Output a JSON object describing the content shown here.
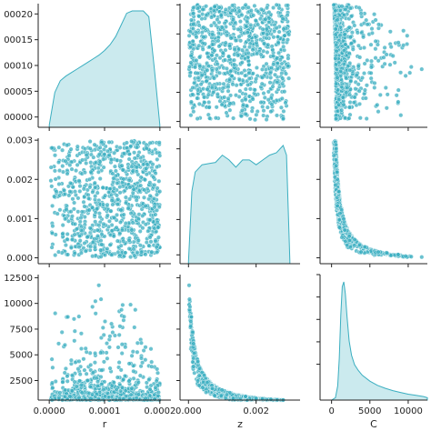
{
  "colors": {
    "marker": "#3aaec0",
    "fill": "#cbeaee",
    "edge": "#3aaec0",
    "axis": "#222222"
  },
  "chart_data": {
    "type": "pairplot",
    "variables": [
      "r",
      "z",
      "C"
    ],
    "ranges": {
      "r": [
        -2e-05,
        0.00022
      ],
      "z": [
        -0.00025,
        0.0033
      ],
      "C": [
        -1500,
        12500
      ]
    },
    "ylims": {
      "r": [
        -1e-05,
        0.000202
      ],
      "z": [
        -0.00015,
        0.00305
      ],
      "C": [
        600,
        12800
      ]
    },
    "yticks": {
      "r": [
        {
          "v": 0.0,
          "label": "00000"
        },
        {
          "v": 5e-05,
          "label": "00005"
        },
        {
          "v": 0.0001,
          "label": "00010"
        },
        {
          "v": 0.00015,
          "label": "00015"
        },
        {
          "v": 0.0002,
          "label": "00020"
        }
      ],
      "z": [
        {
          "v": 0.0,
          "label": "0.000"
        },
        {
          "v": 0.001,
          "label": "0.001"
        },
        {
          "v": 0.002,
          "label": "0.002"
        },
        {
          "v": 0.003,
          "label": "0.003"
        }
      ],
      "C": [
        {
          "v": 2500,
          "label": "2500"
        },
        {
          "v": 5000,
          "label": "5000"
        },
        {
          "v": 7500,
          "label": "7500"
        },
        {
          "v": 10000,
          "label": "10000"
        },
        {
          "v": 12500,
          "label": "12500"
        }
      ]
    },
    "xticks": {
      "r": [
        {
          "v": 0.0,
          "label": "0.0000"
        },
        {
          "v": 0.0001,
          "label": "0.0001"
        },
        {
          "v": 0.0002,
          "label": "0.0002"
        }
      ],
      "z": [
        {
          "v": 0.0,
          "label": "0.000"
        },
        {
          "v": 0.002,
          "label": "0.002"
        }
      ],
      "C": [
        {
          "v": 0,
          "label": "0"
        },
        {
          "v": 5000,
          "label": "5000"
        },
        {
          "v": 10000,
          "label": "10000"
        }
      ]
    },
    "xlabels": [
      "r",
      "z",
      "C"
    ],
    "kde": {
      "r": {
        "x": [
          0.0,
          1e-05,
          2e-05,
          3e-05,
          4e-05,
          5e-05,
          6e-05,
          7e-05,
          8e-05,
          9e-05,
          0.0001,
          0.00011,
          0.00012,
          0.00013,
          0.00014,
          0.00015,
          0.00016,
          0.00017,
          0.00018,
          0.00019,
          0.0002
        ],
        "y": [
          0.02,
          0.3,
          0.4,
          0.44,
          0.47,
          0.5,
          0.53,
          0.56,
          0.59,
          0.62,
          0.66,
          0.71,
          0.78,
          0.88,
          0.98,
          1.0,
          1.0,
          1.0,
          0.95,
          0.5,
          0.02
        ]
      },
      "z": {
        "x": [
          0.0,
          0.0001,
          0.0002,
          0.0004,
          0.0006,
          0.0008,
          0.001,
          0.0012,
          0.0014,
          0.0016,
          0.0018,
          0.002,
          0.0022,
          0.0024,
          0.0026,
          0.0028,
          0.0029,
          0.003
        ],
        "y": [
          0.02,
          0.6,
          0.76,
          0.82,
          0.83,
          0.84,
          0.9,
          0.86,
          0.8,
          0.86,
          0.86,
          0.82,
          0.86,
          0.9,
          0.92,
          0.98,
          0.9,
          0.02
        ]
      },
      "C": {
        "x": [
          0,
          500,
          800,
          1000,
          1200,
          1400,
          1600,
          1800,
          2000,
          2300,
          2600,
          3000,
          3500,
          4000,
          5000,
          6000,
          7000,
          8000,
          9000,
          10000,
          11000,
          12000,
          12500
        ],
        "y": [
          0.0,
          0.02,
          0.12,
          0.35,
          0.72,
          0.96,
          1.0,
          0.9,
          0.72,
          0.5,
          0.38,
          0.3,
          0.25,
          0.21,
          0.16,
          0.125,
          0.1,
          0.08,
          0.065,
          0.05,
          0.04,
          0.03,
          0.02
        ]
      }
    }
  }
}
